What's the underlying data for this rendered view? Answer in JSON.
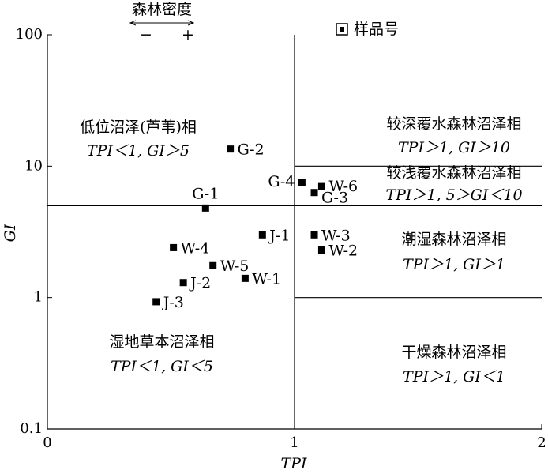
{
  "chart_data": {
    "type": "scatter",
    "xlabel": "TPI",
    "ylabel": "GI",
    "xlim": [
      0,
      2
    ],
    "ylim": [
      0.1,
      100
    ],
    "log_y": true,
    "xticks": [
      0,
      1,
      2
    ],
    "yticks": [
      0.1,
      1,
      10,
      100
    ],
    "series": [
      {
        "name": "样品号",
        "color": "#000000",
        "marker": "square",
        "labels": [
          "G-2",
          "G-1",
          "G-4",
          "W-6",
          "G-3",
          "J-1",
          "W-3",
          "W-2",
          "W-4",
          "W-5",
          "W-1",
          "J-2",
          "J-3"
        ],
        "x": [
          0.74,
          0.64,
          1.03,
          1.11,
          1.08,
          0.87,
          1.08,
          1.11,
          0.51,
          0.67,
          0.8,
          0.55,
          0.44
        ],
        "values": [
          13.5,
          4.8,
          7.5,
          7.0,
          6.3,
          3.0,
          3.0,
          2.3,
          2.4,
          1.75,
          1.4,
          1.3,
          0.93
        ]
      }
    ],
    "reference_lines": [
      {
        "x": [
          1,
          1
        ],
        "y": [
          0.1,
          100
        ]
      },
      {
        "x": [
          0,
          2
        ],
        "y": [
          5,
          5
        ]
      },
      {
        "x": [
          1,
          2
        ],
        "y": [
          10,
          10
        ]
      },
      {
        "x": [
          1,
          2
        ],
        "y": [
          1,
          1
        ]
      }
    ],
    "annotations": [
      {
        "lines": [
          "低位沼泽(芦苇)相",
          "TPI＜1, GI＞5"
        ]
      },
      {
        "lines": [
          "较深覆水森林沼泽相",
          "TPI＞1, GI＞10"
        ]
      },
      {
        "lines": [
          "较浅覆水森林沼泽相",
          "TPI＞1, 5＞GI＜10"
        ]
      },
      {
        "lines": [
          "潮湿森林沼泽相",
          "TPI＞1, GI＞1"
        ]
      },
      {
        "lines": [
          "湿地草本沼泽相",
          "TPI＜1, GI＜5"
        ]
      },
      {
        "lines": [
          "干燥森林沼泽相",
          "TPI＞1, GI＜1"
        ]
      }
    ],
    "density_label": "森林密度",
    "density_signs": [
      "−",
      "+"
    ]
  }
}
